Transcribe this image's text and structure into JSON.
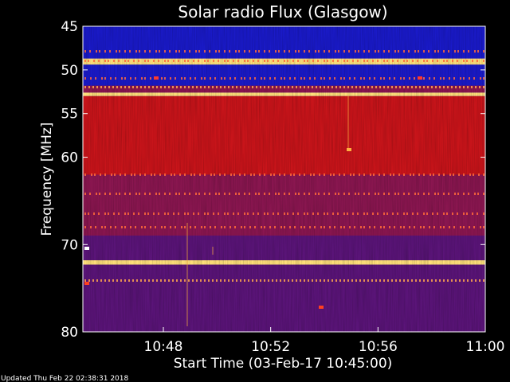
{
  "chart_data": {
    "type": "heatmap",
    "title": "Solar radio Flux (Glasgow)",
    "xlabel": "Start Time (03-Feb-17 10:45:00)",
    "ylabel": "Frequency [MHz]",
    "x_axis": {
      "type": "time",
      "range": [
        "10:45:00",
        "11:00:00"
      ],
      "ticks": [
        "10:48",
        "10:52",
        "10:56",
        "11:00"
      ]
    },
    "y_axis": {
      "type": "linear",
      "range": [
        45,
        80
      ],
      "inverted": true,
      "ticks": [
        45,
        50,
        55,
        60,
        70,
        80
      ]
    },
    "frequency_bands": [
      {
        "from": 45.0,
        "to": 48.7,
        "level": "low"
      },
      {
        "from": 48.7,
        "to": 49.4,
        "level": "very-high"
      },
      {
        "from": 49.4,
        "to": 51.8,
        "level": "low"
      },
      {
        "from": 51.8,
        "to": 52.6,
        "level": "mid"
      },
      {
        "from": 52.6,
        "to": 53.0,
        "level": "very-high"
      },
      {
        "from": 53.0,
        "to": 62.0,
        "level": "high"
      },
      {
        "from": 62.0,
        "to": 69.0,
        "level": "mid"
      },
      {
        "from": 69.0,
        "to": 71.8,
        "level": "mid-low"
      },
      {
        "from": 71.8,
        "to": 72.3,
        "level": "very-high"
      },
      {
        "from": 72.3,
        "to": 80.0,
        "level": "mid-low"
      }
    ],
    "color_scale": {
      "low": "#1a1ac8",
      "mid-low": "#5a1478",
      "mid": "#8a1650",
      "high": "#c8141a",
      "very-high": "#ffe07a"
    },
    "background": "#000000",
    "grid": false
  },
  "footer": {
    "updated_text": "Updated Thu Feb 22 02:38:31 2018"
  }
}
